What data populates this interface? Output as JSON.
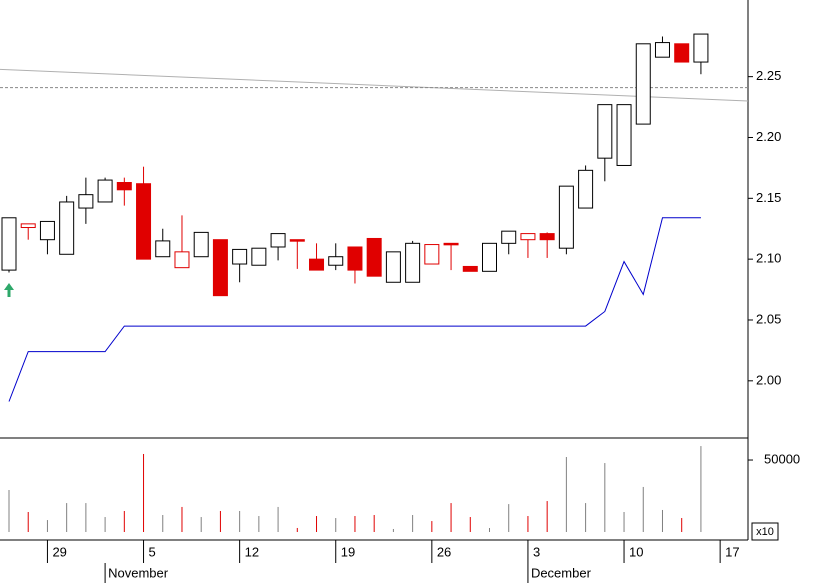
{
  "chart_data": {
    "type": "candlestick",
    "categories": [
      null,
      null,
      "29",
      null,
      null,
      null,
      null,
      "5",
      null,
      null,
      null,
      null,
      "12",
      null,
      null,
      null,
      null,
      "19",
      null,
      null,
      null,
      null,
      "26",
      null,
      null,
      null,
      null,
      "3",
      null,
      null,
      null,
      null,
      "10",
      null,
      null,
      null,
      null,
      "17"
    ],
    "month_labels": [
      null,
      null,
      null,
      null,
      null,
      "November",
      null,
      null,
      null,
      null,
      null,
      null,
      null,
      null,
      null,
      null,
      null,
      null,
      null,
      null,
      null,
      null,
      null,
      null,
      null,
      null,
      null,
      "December",
      null,
      null,
      null,
      null,
      null,
      null,
      null,
      null,
      null,
      null
    ],
    "open": [
      2.091,
      2.126,
      2.116,
      2.104,
      2.142,
      2.147,
      2.163,
      2.162,
      2.102,
      2.093,
      2.102,
      2.116,
      2.096,
      2.095,
      2.11,
      2.116,
      2.1,
      2.095,
      2.11,
      2.117,
      2.081,
      2.081,
      2.096,
      2.113,
      2.094,
      2.09,
      2.113,
      2.116,
      2.121,
      2.109,
      2.142,
      2.183,
      2.177,
      2.211,
      2.266,
      2.277,
      2.262,
      null
    ],
    "high": [
      2.134,
      2.129,
      2.131,
      2.152,
      2.167,
      2.167,
      2.167,
      2.176,
      2.125,
      2.136,
      2.122,
      2.116,
      2.108,
      2.109,
      2.121,
      2.116,
      2.113,
      2.113,
      2.11,
      2.117,
      2.106,
      2.115,
      2.112,
      2.113,
      2.094,
      2.113,
      2.123,
      2.121,
      2.122,
      2.16,
      2.177,
      2.227,
      2.227,
      2.277,
      2.283,
      2.277,
      2.285,
      null
    ],
    "low": [
      2.089,
      2.116,
      2.104,
      2.104,
      2.129,
      2.147,
      2.144,
      2.1,
      2.102,
      2.093,
      2.102,
      2.07,
      2.081,
      2.095,
      2.099,
      2.092,
      2.091,
      2.091,
      2.08,
      2.086,
      2.081,
      2.081,
      2.096,
      2.091,
      2.09,
      2.09,
      2.104,
      2.101,
      2.101,
      2.104,
      2.142,
      2.164,
      2.177,
      2.211,
      2.266,
      2.262,
      2.252,
      null
    ],
    "close": [
      2.134,
      2.129,
      2.131,
      2.147,
      2.153,
      2.165,
      2.157,
      2.1,
      2.115,
      2.106,
      2.122,
      2.07,
      2.108,
      2.109,
      2.121,
      2.115,
      2.091,
      2.102,
      2.091,
      2.086,
      2.106,
      2.113,
      2.112,
      2.112,
      2.09,
      2.113,
      2.123,
      2.121,
      2.116,
      2.16,
      2.173,
      2.227,
      2.227,
      2.277,
      2.278,
      2.262,
      2.285,
      null
    ],
    "volume": [
      29200,
      13900,
      8300,
      20100,
      20100,
      10400,
      14600,
      54200,
      11800,
      17400,
      10400,
      14600,
      14600,
      11100,
      17400,
      2800,
      11100,
      9700,
      11100,
      11800,
      2100,
      11800,
      7600,
      20100,
      10400,
      2800,
      19400,
      11100,
      21500,
      52100,
      20100,
      47900,
      13900,
      31300,
      15300,
      9700,
      59700,
      null
    ],
    "line": {
      "color": "#0000cc",
      "values": [
        1.983,
        2.024,
        2.024,
        2.024,
        2.024,
        2.024,
        2.045,
        2.045,
        2.045,
        2.045,
        2.045,
        2.045,
        2.045,
        2.045,
        2.045,
        2.045,
        2.045,
        2.045,
        2.045,
        2.045,
        2.045,
        2.045,
        2.045,
        2.045,
        2.045,
        2.045,
        2.045,
        2.045,
        2.045,
        2.045,
        2.045,
        2.057,
        2.098,
        2.071,
        2.134,
        2.134,
        2.134,
        null
      ]
    },
    "trendline": [
      2.256,
      2.23
    ],
    "reference_line": 2.241,
    "up_color": "#000000",
    "down_color": "#e00000",
    "ylim": [
      1.953,
      2.313
    ],
    "yticks": [
      {
        "value": 2.0,
        "label": "2.00"
      },
      2.05,
      {
        "value": 2.1,
        "label": "2.10"
      },
      2.15,
      {
        "value": 2.2,
        "label": "2.20"
      },
      2.25
    ],
    "volume_ylim": [
      0,
      65300
    ],
    "volume_yticks": [
      50000
    ],
    "volume_unit": "x10"
  }
}
